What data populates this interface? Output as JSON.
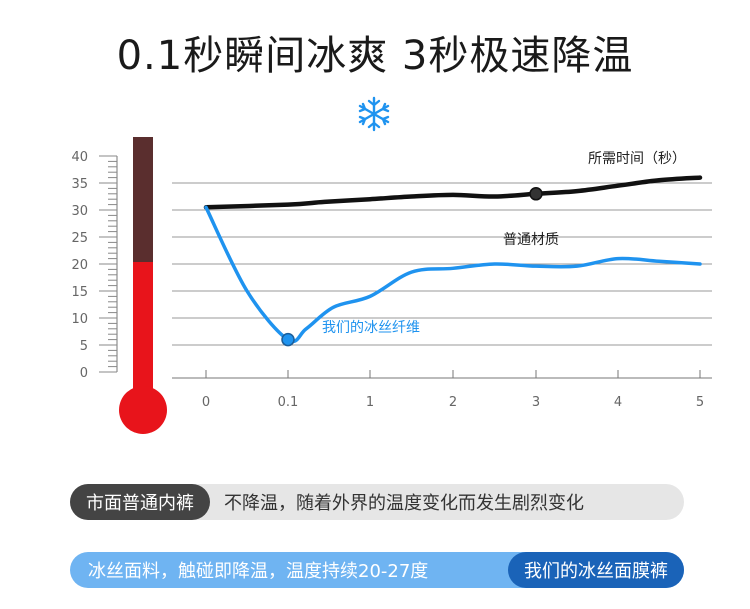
{
  "title": "0.1秒瞬间冰爽 3秒极速降温",
  "icons": {
    "snowflake": "snowflake-icon",
    "thermometer": "thermometer-icon"
  },
  "colors": {
    "normal_series": "#111111",
    "ice_series": "#1f93ef",
    "thermometer_top": "#5a2e2e",
    "thermometer_bottom": "#e8141b",
    "bulb": "#e8141b"
  },
  "chart_data": {
    "type": "line",
    "x_label": "所需时间（秒）",
    "x_ticks": [
      "0",
      "0.1",
      "1",
      "2",
      "3",
      "4",
      "5"
    ],
    "y_ticks": [
      "0",
      "5",
      "10",
      "15",
      "20",
      "25",
      "30",
      "35",
      "40"
    ],
    "ylim": [
      0,
      40
    ],
    "grid": true,
    "series": [
      {
        "name": "普通材质",
        "x": [
          0,
          0.1,
          0.5,
          1,
          1.5,
          2,
          2.5,
          3,
          3.5,
          4,
          4.5,
          5
        ],
        "y": [
          30.5,
          31,
          31.5,
          32,
          32.5,
          32.8,
          32.5,
          33,
          33.5,
          34.5,
          35.5,
          36
        ]
      },
      {
        "name": "我们的冰丝纤维",
        "x": [
          0,
          0.05,
          0.1,
          0.3,
          0.6,
          1,
          1.5,
          2,
          2.5,
          3,
          3.5,
          4,
          4.5,
          5
        ],
        "y": [
          30.5,
          15,
          6,
          8,
          12,
          14,
          18.5,
          19.2,
          20,
          19.6,
          19.6,
          21,
          20.5,
          20
        ]
      }
    ],
    "markers": [
      {
        "series": 0,
        "x": 3,
        "y": 33
      },
      {
        "series": 1,
        "x": 0.1,
        "y": 6
      }
    ]
  },
  "comparison": {
    "normal_tag": "市面普通内裤",
    "normal_desc": "不降温，随着外界的温度变化而发生剧烈变化",
    "ice_desc": "冰丝面料，触碰即降温，温度持续20-27度",
    "ice_tag": "我们的冰丝面膜裤"
  }
}
